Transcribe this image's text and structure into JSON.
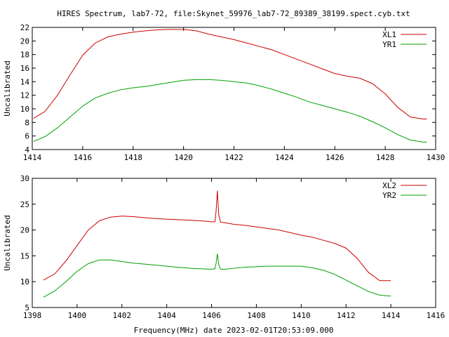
{
  "page_title": "HIRES Spectrum, lab7-72, file:Skynet_59976_lab7-72_89389_38199.spect.cyb.txt",
  "footer_label": "Frequency(MHz) date 2023-02-01T20:53:09.000",
  "chart_data": [
    {
      "type": "line",
      "ylabel": "Uncalibrated",
      "xlim": [
        1414,
        1430
      ],
      "ylim": [
        4,
        22
      ],
      "xticks": [
        "1414",
        "1416",
        "1418",
        "1420",
        "1422",
        "1424",
        "1426",
        "1428",
        "1430"
      ],
      "yticks": [
        "4",
        "6",
        "8",
        "10",
        "12",
        "14",
        "16",
        "18",
        "20",
        "22"
      ],
      "legend_position": "top-right",
      "series": [
        {
          "name": "XL1",
          "color": "#cc0000",
          "x": [
            1414.05,
            1414.5,
            1415.0,
            1415.5,
            1416.0,
            1416.5,
            1417.0,
            1417.5,
            1418.0,
            1418.5,
            1419.0,
            1419.5,
            1420.0,
            1420.5,
            1421.0,
            1421.5,
            1422.0,
            1422.5,
            1423.0,
            1423.5,
            1424.0,
            1424.5,
            1425.0,
            1425.5,
            1426.0,
            1426.5,
            1427.0,
            1427.5,
            1428.0,
            1428.5,
            1429.0,
            1429.5,
            1429.65
          ],
          "y": [
            8.6,
            9.6,
            12.0,
            15.0,
            17.9,
            19.7,
            20.6,
            21.0,
            21.3,
            21.5,
            21.65,
            21.7,
            21.7,
            21.5,
            21.0,
            20.6,
            20.2,
            19.7,
            19.2,
            18.7,
            18.0,
            17.3,
            16.6,
            15.9,
            15.2,
            14.8,
            14.5,
            13.7,
            12.2,
            10.2,
            8.8,
            8.5,
            8.5
          ]
        },
        {
          "name": "YR1",
          "color": "#00a000",
          "x": [
            1414.05,
            1414.5,
            1415.0,
            1415.5,
            1416.0,
            1416.5,
            1417.0,
            1417.5,
            1418.0,
            1418.5,
            1419.0,
            1419.5,
            1420.0,
            1420.5,
            1421.0,
            1421.5,
            1422.0,
            1422.5,
            1423.0,
            1423.5,
            1424.0,
            1424.5,
            1425.0,
            1425.5,
            1426.0,
            1426.5,
            1427.0,
            1427.5,
            1428.0,
            1428.5,
            1429.0,
            1429.5,
            1429.65
          ],
          "y": [
            5.2,
            5.9,
            7.2,
            8.8,
            10.4,
            11.6,
            12.3,
            12.8,
            13.1,
            13.3,
            13.6,
            13.9,
            14.2,
            14.3,
            14.3,
            14.2,
            14.0,
            13.8,
            13.4,
            12.9,
            12.3,
            11.7,
            11.0,
            10.5,
            10.0,
            9.5,
            8.9,
            8.1,
            7.2,
            6.2,
            5.4,
            5.1,
            5.1
          ]
        }
      ]
    },
    {
      "type": "line",
      "ylabel": "Uncalibrated",
      "xlim": [
        1398,
        1416
      ],
      "ylim": [
        5,
        30
      ],
      "xticks": [
        "1398",
        "1400",
        "1402",
        "1404",
        "1406",
        "1408",
        "1410",
        "1412",
        "1414",
        "1416"
      ],
      "yticks": [
        "5",
        "10",
        "15",
        "20",
        "25",
        "30"
      ],
      "legend_position": "top-right",
      "series": [
        {
          "name": "XL2",
          "color": "#cc0000",
          "x": [
            1398.5,
            1399.0,
            1399.5,
            1400.0,
            1400.5,
            1401.0,
            1401.5,
            1402.0,
            1402.5,
            1403.0,
            1403.5,
            1404.0,
            1404.5,
            1405.0,
            1405.5,
            1406.0,
            1406.15,
            1406.2,
            1406.26,
            1406.32,
            1406.4,
            1406.6,
            1407.0,
            1407.5,
            1408.0,
            1408.5,
            1409.0,
            1409.5,
            1410.0,
            1410.5,
            1411.0,
            1411.5,
            1412.0,
            1412.5,
            1413.0,
            1413.5,
            1414.0
          ],
          "y": [
            10.3,
            11.5,
            14.0,
            17.0,
            20.0,
            21.8,
            22.5,
            22.7,
            22.6,
            22.4,
            22.2,
            22.1,
            22.0,
            21.9,
            21.8,
            21.6,
            21.6,
            23.5,
            27.6,
            23.0,
            21.5,
            21.4,
            21.1,
            20.9,
            20.6,
            20.3,
            20.0,
            19.5,
            19.0,
            18.6,
            18.0,
            17.4,
            16.5,
            14.5,
            11.8,
            10.2,
            10.2
          ]
        },
        {
          "name": "YR2",
          "color": "#00a000",
          "x": [
            1398.5,
            1399.0,
            1399.5,
            1400.0,
            1400.5,
            1401.0,
            1401.5,
            1402.0,
            1402.5,
            1403.0,
            1403.5,
            1404.0,
            1404.5,
            1405.0,
            1405.5,
            1406.0,
            1406.15,
            1406.2,
            1406.26,
            1406.32,
            1406.4,
            1406.6,
            1407.0,
            1407.5,
            1408.0,
            1408.5,
            1409.0,
            1409.5,
            1410.0,
            1410.5,
            1411.0,
            1411.5,
            1412.0,
            1412.5,
            1413.0,
            1413.5,
            1414.0
          ],
          "y": [
            7.0,
            8.2,
            10.0,
            12.0,
            13.5,
            14.2,
            14.2,
            13.9,
            13.6,
            13.4,
            13.2,
            13.0,
            12.8,
            12.6,
            12.5,
            12.4,
            12.5,
            13.5,
            15.4,
            13.3,
            12.4,
            12.4,
            12.6,
            12.8,
            12.9,
            13.0,
            13.0,
            13.0,
            13.0,
            12.7,
            12.2,
            11.4,
            10.3,
            9.2,
            8.1,
            7.4,
            7.2
          ]
        }
      ]
    }
  ]
}
